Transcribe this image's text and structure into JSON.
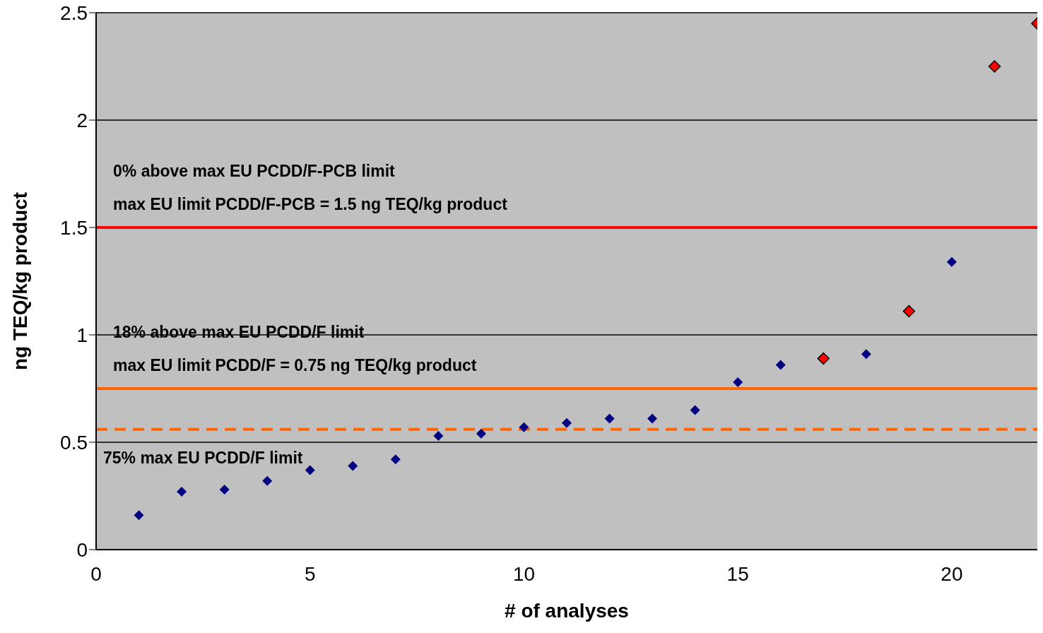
{
  "chart_data": {
    "type": "scatter",
    "xlabel": "# of analyses",
    "ylabel": "ng TEQ/kg product",
    "xlim": [
      0,
      22
    ],
    "xticks": [
      0,
      5,
      10,
      15,
      20
    ],
    "ylim": [
      0,
      2.5
    ],
    "yticks": [
      0,
      0.5,
      1,
      1.5,
      2,
      2.5
    ],
    "grid": "y",
    "marker": "diamond",
    "legend": false,
    "series": [
      {
        "color": "#000080",
        "x": [
          1,
          2,
          3,
          4,
          5,
          6,
          7,
          8,
          9,
          10,
          11,
          12,
          13,
          14,
          15,
          16,
          18,
          20
        ],
        "values": [
          0.16,
          0.27,
          0.28,
          0.32,
          0.37,
          0.39,
          0.42,
          0.53,
          0.54,
          0.57,
          0.59,
          0.61,
          0.61,
          0.65,
          0.78,
          0.86,
          0.91,
          1.34
        ]
      },
      {
        "color": "#ff0000",
        "x": [
          17,
          19,
          21,
          22
        ],
        "values": [
          0.89,
          1.11,
          2.25,
          2.45
        ]
      }
    ],
    "ref_lines": [
      {
        "axis": "y",
        "value": 1.5,
        "label": "max EU limit PCDD/F-PCB = 1.5 ng TEQ/kg product",
        "color": "#ff0000",
        "line_style": "solid"
      },
      {
        "axis": "y",
        "value": 0.75,
        "label": "max EU limit PCDD/F = 0.75 ng TEQ/kg product",
        "color": "#ff6600",
        "line_style": "solid"
      },
      {
        "axis": "y",
        "value": 0.56,
        "label": "75% max EU PCDD/F limit",
        "color": "#ff6600",
        "line_style": "dashed"
      }
    ],
    "annotations": [
      "0% above max EU PCDD/F-PCB limit",
      "18% above max EU PCDD/F limit"
    ]
  }
}
